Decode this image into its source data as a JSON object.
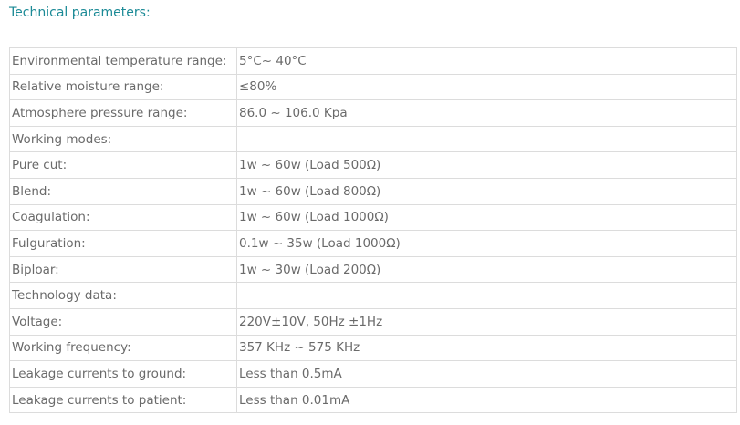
{
  "title": "Technical parameters:",
  "rows": [
    {
      "label": "Environmental temperature range:",
      "value": "5°C~ 40°C"
    },
    {
      "label": "Relative moisture range:",
      "value": "≤80%"
    },
    {
      "label": "Atmosphere pressure range:",
      "value": "86.0 ~ 106.0 Kpa"
    },
    {
      "label": " Working modes:",
      "value": ""
    },
    {
      "label": "Pure cut:",
      "value": "1w ~ 60w (Load 500Ω)"
    },
    {
      "label": "Blend:",
      "value": "1w ~ 60w (Load 800Ω)"
    },
    {
      "label": "Coagulation:",
      "value": "1w ~ 60w (Load 1000Ω)"
    },
    {
      "label": "Fulguration:",
      "value": "0.1w ~ 35w (Load 1000Ω)"
    },
    {
      "label": "Biploar:",
      "value": "1w ~ 30w (Load 200Ω)"
    },
    {
      "label": "Technology data:",
      "value": ""
    },
    {
      "label": "Voltage:",
      "value": "220V±10V, 50Hz ±1Hz"
    },
    {
      "label": "Working frequency:",
      "value": "357 KHz ~ 575 KHz"
    },
    {
      "label": "Leakage currents to ground:",
      "value": "Less than 0.5mA"
    },
    {
      "label": "Leakage currents to patient:",
      "value": "Less than 0.01mA"
    }
  ]
}
